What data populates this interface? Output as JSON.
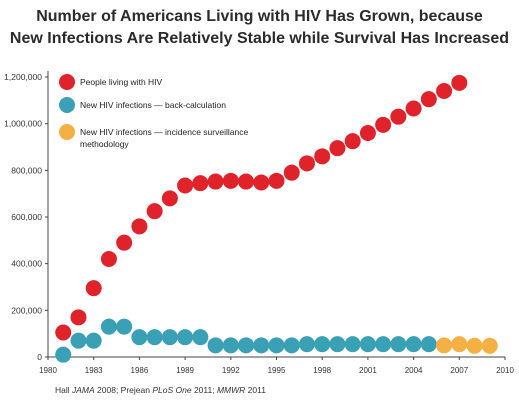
{
  "chart_data": {
    "type": "scatter",
    "title": [
      "Number of Americans Living with HIV Has Grown, because",
      "New Infections Are Relatively Stable while Survival Has Increased"
    ],
    "source": {
      "parts": [
        {
          "text": "Hall ",
          "italic": false
        },
        {
          "text": "JAMA",
          "italic": true
        },
        {
          "text": " 2008; Prejean ",
          "italic": false
        },
        {
          "text": "PLoS One",
          "italic": true
        },
        {
          "text": " 2011; ",
          "italic": false
        },
        {
          "text": "MMWR",
          "italic": true
        },
        {
          "text": " 2011",
          "italic": false
        }
      ]
    },
    "xlim": [
      1980,
      2010
    ],
    "ylim": [
      0,
      1200000
    ],
    "x_ticks": [
      "1980",
      "1983",
      "1986",
      "1989",
      "1992",
      "1995",
      "1998",
      "2001",
      "2004",
      "2007",
      "2010"
    ],
    "y_ticks": [
      "0",
      "200,000",
      "400,000",
      "600,000",
      "800,000",
      "1,000,000",
      "1,200,000"
    ],
    "grid": false,
    "legend_position": "top-left",
    "series": [
      {
        "name": "People living with HIV",
        "color": "#e0222b",
        "x": [
          1981,
          1982,
          1983,
          1984,
          1985,
          1986,
          1987,
          1988,
          1989,
          1990,
          1991,
          1992,
          1993,
          1994,
          1995,
          1996,
          1997,
          1998,
          1999,
          2000,
          2001,
          2002,
          2003,
          2004,
          2005,
          2006,
          2007
        ],
        "y": [
          105000,
          170000,
          295000,
          420000,
          490000,
          560000,
          625000,
          680000,
          735000,
          745000,
          752000,
          755000,
          752000,
          748000,
          755000,
          790000,
          830000,
          860000,
          895000,
          925000,
          960000,
          995000,
          1030000,
          1065000,
          1105000,
          1140000,
          1175000
        ]
      },
      {
        "name": "New HIV infections — back-calculation",
        "color": "#3aa0b5",
        "x": [
          1981,
          1982,
          1983,
          1984,
          1985,
          1986,
          1987,
          1988,
          1989,
          1990,
          1991,
          1992,
          1993,
          1994,
          1995,
          1996,
          1997,
          1998,
          1999,
          2000,
          2001,
          2002,
          2003,
          2004,
          2005
        ],
        "y": [
          10000,
          70000,
          70000,
          130000,
          130000,
          85000,
          85000,
          85000,
          85000,
          85000,
          50000,
          50000,
          50000,
          50000,
          50000,
          50000,
          55000,
          55000,
          55000,
          55000,
          55000,
          55000,
          55000,
          55000,
          55000
        ]
      },
      {
        "name": "New HIV infections — incidence surveillance methodology",
        "color": "#f4b042",
        "x": [
          2006,
          2007,
          2008,
          2009
        ],
        "y": [
          50000,
          55000,
          48000,
          48000
        ]
      }
    ],
    "legend": [
      {
        "lines": [
          "People living with HIV"
        ],
        "color": "#e0222b"
      },
      {
        "lines": [
          "New HIV infections — back-calculation"
        ],
        "color": "#3aa0b5"
      },
      {
        "lines": [
          "New HIV infections — incidence surveillance",
          "methodology"
        ],
        "color": "#f4b042"
      }
    ]
  }
}
